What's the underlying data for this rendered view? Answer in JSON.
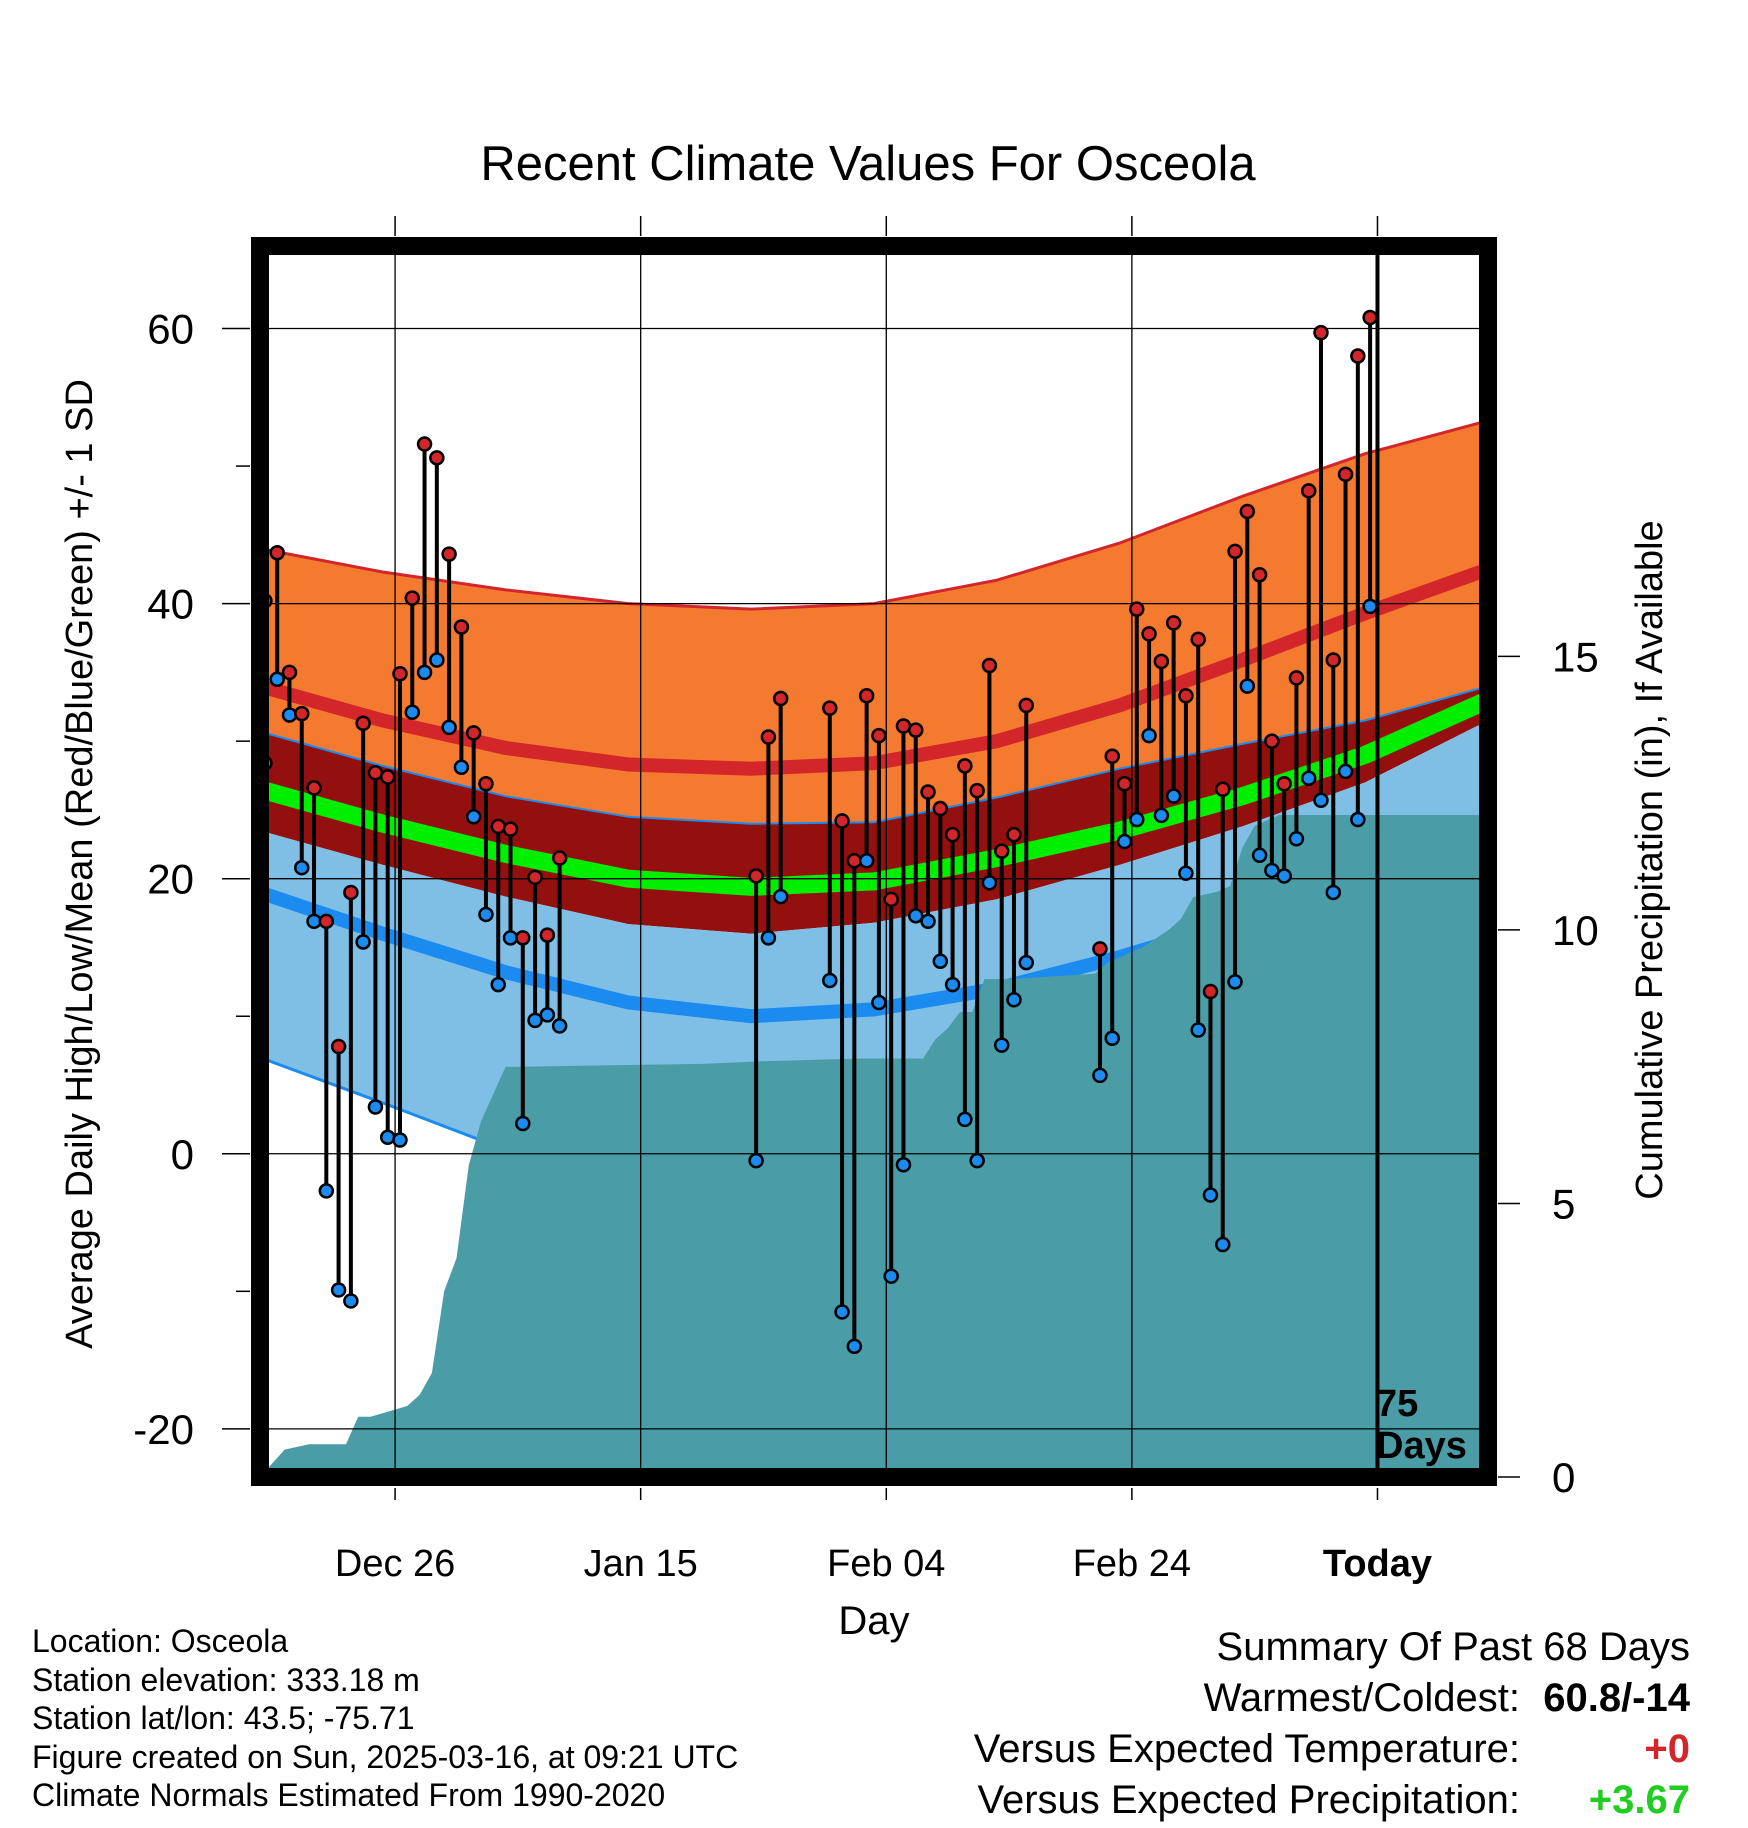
{
  "title": "Recent Climate Values For Osceola",
  "y_label": "Average Daily High/Low/Mean (Red/Blue/Green) +/- 1 SD",
  "y2_label": "Cumulative Precipitation (in), If Available",
  "x_label": "Day",
  "x_ticks": [
    "Dec 26",
    "Jan 15",
    "Feb 04",
    "Feb 24",
    "Today"
  ],
  "y_ticks": [
    "60",
    "40",
    "20",
    "0",
    "-20"
  ],
  "y2_ticks": [
    "15",
    "10",
    "5",
    "0"
  ],
  "today_label": "75",
  "today_label2": "Days",
  "info": {
    "location": "Location: Osceola",
    "elevation": "Station elevation: 333.18 m",
    "latlon": "Station lat/lon: 43.5; -75.71",
    "created": "Figure created on Sun, 2025-03-16, at 09:21 UTC",
    "normals": "Climate Normals Estimated From 1990-2020"
  },
  "summary": {
    "heading": "Summary Of Past 68 Days",
    "warm_cold_label": "Warmest/Coldest:",
    "warm_cold_value": "60.8/-14",
    "temp_label": "Versus Expected Temperature:",
    "temp_value": "+0",
    "precip_label": "Versus Expected Precipitation:",
    "precip_value": "+3.67"
  },
  "colors": {
    "high_band": "#f47a30",
    "high_line": "#d2262a",
    "mean_band_edge": "#94100f",
    "mean_line": "#00ee00",
    "low_band": "#7fbfe6",
    "low_line": "#1b8bf0",
    "precip": "#4a9ca6",
    "high_dot": "#d2262a",
    "low_dot": "#1b8bf0",
    "temp_value": "#d2262a",
    "precip_value": "#22cc22"
  },
  "chart_data": {
    "type": "line",
    "title": "Recent Climate Values For Osceola",
    "xlabel": "Day",
    "ylabel": "Average Daily High/Low/Mean (Red/Blue/Green) +/- 1 SD",
    "y2label": "Cumulative Precipitation (in), If Available",
    "x_range": [
      "2024-12-15",
      "2025-03-25"
    ],
    "ylim": [
      -23.5,
      66
    ],
    "y2lim": [
      0,
      22.5
    ],
    "x_ticks": [
      "2024-12-26",
      "2025-01-15",
      "2025-02-04",
      "2025-02-24",
      "2025-03-16"
    ],
    "today": "2025-03-16",
    "grid": true,
    "normals": {
      "x": [
        "2024-12-15",
        "2024-12-25",
        "2025-01-04",
        "2025-01-14",
        "2025-01-24",
        "2025-02-03",
        "2025-02-13",
        "2025-02-23",
        "2025-03-05",
        "2025-03-15",
        "2025-03-25"
      ],
      "high_upper": [
        44.0,
        42.3,
        41.0,
        40.0,
        39.6,
        40.0,
        41.7,
        44.4,
        47.8,
        50.9,
        53.3
      ],
      "high_mean": [
        34.0,
        31.5,
        29.5,
        28.3,
        28.0,
        28.4,
        30.0,
        32.6,
        35.9,
        39.3,
        42.5
      ],
      "high_lower": [
        24.0,
        21.5,
        19.0,
        17.3,
        16.6,
        17.3,
        19.0,
        21.7,
        24.8,
        28.4,
        32.5
      ],
      "mean_upper": [
        30.7,
        28.2,
        26.0,
        24.5,
        24.0,
        24.1,
        25.9,
        28.0,
        29.8,
        31.5,
        34.0
      ],
      "mean": [
        26.5,
        24.0,
        21.8,
        20.0,
        19.4,
        19.8,
        21.5,
        23.5,
        26.0,
        29.0,
        33.0
      ],
      "mean_lower": [
        23.5,
        21.0,
        18.7,
        16.7,
        16.0,
        16.8,
        18.5,
        21.0,
        23.8,
        27.0,
        31.5
      ],
      "low_mean": [
        19.0,
        16.0,
        13.2,
        11.0,
        10.0,
        10.5,
        12.0,
        14.3,
        17.0,
        20.5,
        24.3
      ],
      "low_lower": [
        7.0,
        3.7,
        0.3,
        -2.3,
        -3.3,
        -2.6,
        -0.8,
        1.8,
        5.0,
        9.0,
        14.0
      ]
    },
    "daily": {
      "x": [
        "2024-12-15",
        "2024-12-16",
        "2024-12-17",
        "2024-12-18",
        "2024-12-19",
        "2024-12-20",
        "2024-12-21",
        "2024-12-22",
        "2024-12-23",
        "2024-12-24",
        "2024-12-25",
        "2024-12-26",
        "2024-12-27",
        "2024-12-28",
        "2024-12-29",
        "2024-12-30",
        "2024-12-31",
        "2025-01-01",
        "2025-01-02",
        "2025-01-03",
        "2025-01-04",
        "2025-01-05",
        "2025-01-06",
        "2025-01-07",
        "2025-01-08",
        "2025-01-24",
        "2025-01-25",
        "2025-01-26",
        "2025-01-30",
        "2025-01-31",
        "2025-02-01",
        "2025-02-02",
        "2025-02-03",
        "2025-02-04",
        "2025-02-05",
        "2025-02-06",
        "2025-02-07",
        "2025-02-08",
        "2025-02-09",
        "2025-02-10",
        "2025-02-11",
        "2025-02-12",
        "2025-02-13",
        "2025-02-14",
        "2025-02-15",
        "2025-02-21",
        "2025-02-22",
        "2025-02-23",
        "2025-02-24",
        "2025-02-25",
        "2025-02-26",
        "2025-02-27",
        "2025-02-28",
        "2025-03-01",
        "2025-03-02",
        "2025-03-03",
        "2025-03-04",
        "2025-03-05",
        "2025-03-06",
        "2025-03-07",
        "2025-03-08",
        "2025-03-09",
        "2025-03-10",
        "2025-03-11",
        "2025-03-12",
        "2025-03-13",
        "2025-03-14",
        "2025-03-15"
      ],
      "high": [
        40.2,
        43.7,
        35.0,
        32.0,
        26.6,
        16.9,
        7.8,
        19.0,
        31.3,
        27.7,
        27.4,
        34.9,
        40.4,
        51.6,
        50.6,
        43.6,
        38.3,
        30.6,
        26.9,
        23.8,
        23.6,
        15.7,
        20.1,
        15.9,
        21.5,
        20.2,
        30.3,
        33.1,
        32.4,
        24.2,
        21.3,
        33.3,
        30.4,
        18.5,
        31.1,
        30.8,
        26.3,
        25.1,
        23.2,
        28.2,
        26.4,
        35.5,
        22.0,
        23.2,
        32.6,
        14.9,
        28.9,
        26.9,
        39.6,
        37.8,
        35.8,
        38.6,
        33.3,
        37.4,
        11.8,
        26.5,
        43.8,
        46.7,
        42.1,
        30.0,
        26.9,
        34.6,
        48.2,
        59.7,
        35.9,
        49.4,
        58.0,
        60.8
      ],
      "low": [
        28.4,
        34.5,
        31.9,
        20.8,
        16.9,
        -2.7,
        -9.9,
        -10.7,
        15.4,
        3.4,
        1.2,
        1.0,
        32.1,
        35.0,
        35.9,
        31.0,
        28.1,
        24.5,
        17.4,
        12.3,
        15.7,
        2.2,
        9.7,
        10.1,
        9.3,
        -0.5,
        15.7,
        18.7,
        12.6,
        -11.5,
        -14.0,
        21.3,
        11.0,
        -8.9,
        -0.8,
        17.3,
        16.9,
        14.0,
        12.3,
        2.5,
        -0.5,
        19.7,
        7.9,
        11.2,
        13.9,
        5.7,
        8.4,
        22.7,
        24.3,
        30.4,
        24.6,
        26.0,
        20.4,
        9.0,
        -3.0,
        -6.6,
        12.5,
        34.0,
        21.7,
        20.6,
        20.2,
        22.9,
        27.3,
        25.7,
        19.0,
        27.8,
        24.3,
        39.8
      ]
    },
    "precip": {
      "x": [
        "2024-12-15",
        "2024-12-17",
        "2024-12-19",
        "2024-12-22",
        "2024-12-23",
        "2024-12-24",
        "2024-12-27",
        "2024-12-28",
        "2024-12-29",
        "2024-12-30",
        "2024-12-31",
        "2025-01-01",
        "2025-01-02",
        "2025-01-03",
        "2025-01-04",
        "2025-01-05",
        "2025-01-20",
        "2025-01-25",
        "2025-02-02",
        "2025-02-07",
        "2025-02-08",
        "2025-02-09",
        "2025-02-10",
        "2025-02-11",
        "2025-02-12",
        "2025-02-14",
        "2025-02-21",
        "2025-02-22",
        "2025-02-24",
        "2025-02-25",
        "2025-02-27",
        "2025-02-28",
        "2025-03-01",
        "2025-03-03",
        "2025-03-04",
        "2025-03-05",
        "2025-03-06",
        "2025-03-08",
        "2025-03-25"
      ],
      "values": [
        0.0,
        0.5,
        0.6,
        0.6,
        1.1,
        1.1,
        1.3,
        1.5,
        1.9,
        3.4,
        4.0,
        5.7,
        6.5,
        7.0,
        7.5,
        7.5,
        7.55,
        7.6,
        7.65,
        7.65,
        8.0,
        8.2,
        8.5,
        8.5,
        9.1,
        9.1,
        9.2,
        9.4,
        9.6,
        9.7,
        10.0,
        10.2,
        10.6,
        10.7,
        10.8,
        11.5,
        11.9,
        12.1,
        12.1
      ]
    }
  }
}
